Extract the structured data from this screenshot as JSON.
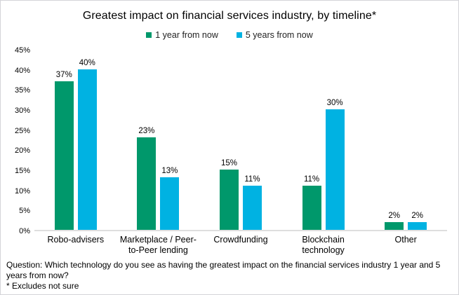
{
  "chart_data": {
    "type": "bar",
    "title": "Greatest impact on financial services industry, by timeline*",
    "categories": [
      "Robo-advisers",
      "Marketplace / Peer-to-Peer lending",
      "Crowdfunding",
      "Blockchain technology",
      "Other"
    ],
    "series": [
      {
        "name": "1 year from now",
        "color": "#00986B",
        "values": [
          37,
          23,
          15,
          11,
          2
        ]
      },
      {
        "name": "5 years from now",
        "color": "#00B2E2",
        "values": [
          40,
          13,
          11,
          30,
          2
        ]
      }
    ],
    "data_labels": [
      [
        "37%",
        "23%",
        "15%",
        "11%",
        "2%"
      ],
      [
        "40%",
        "13%",
        "11%",
        "30%",
        "2%"
      ]
    ],
    "xlabel": "",
    "ylabel": "",
    "ylim": [
      0,
      45
    ],
    "ytick_labels": [
      "0%",
      "5%",
      "10%",
      "15%",
      "20%",
      "25%",
      "30%",
      "35%",
      "40%",
      "45%"
    ],
    "grid": false,
    "legend_position": "top",
    "axis_line_color": "#dedede"
  },
  "footer": {
    "question": "Question: Which technology do you see as having the greatest impact on the financial services industry 1 year and 5 years from now?",
    "footnote": "* Excludes not sure"
  }
}
